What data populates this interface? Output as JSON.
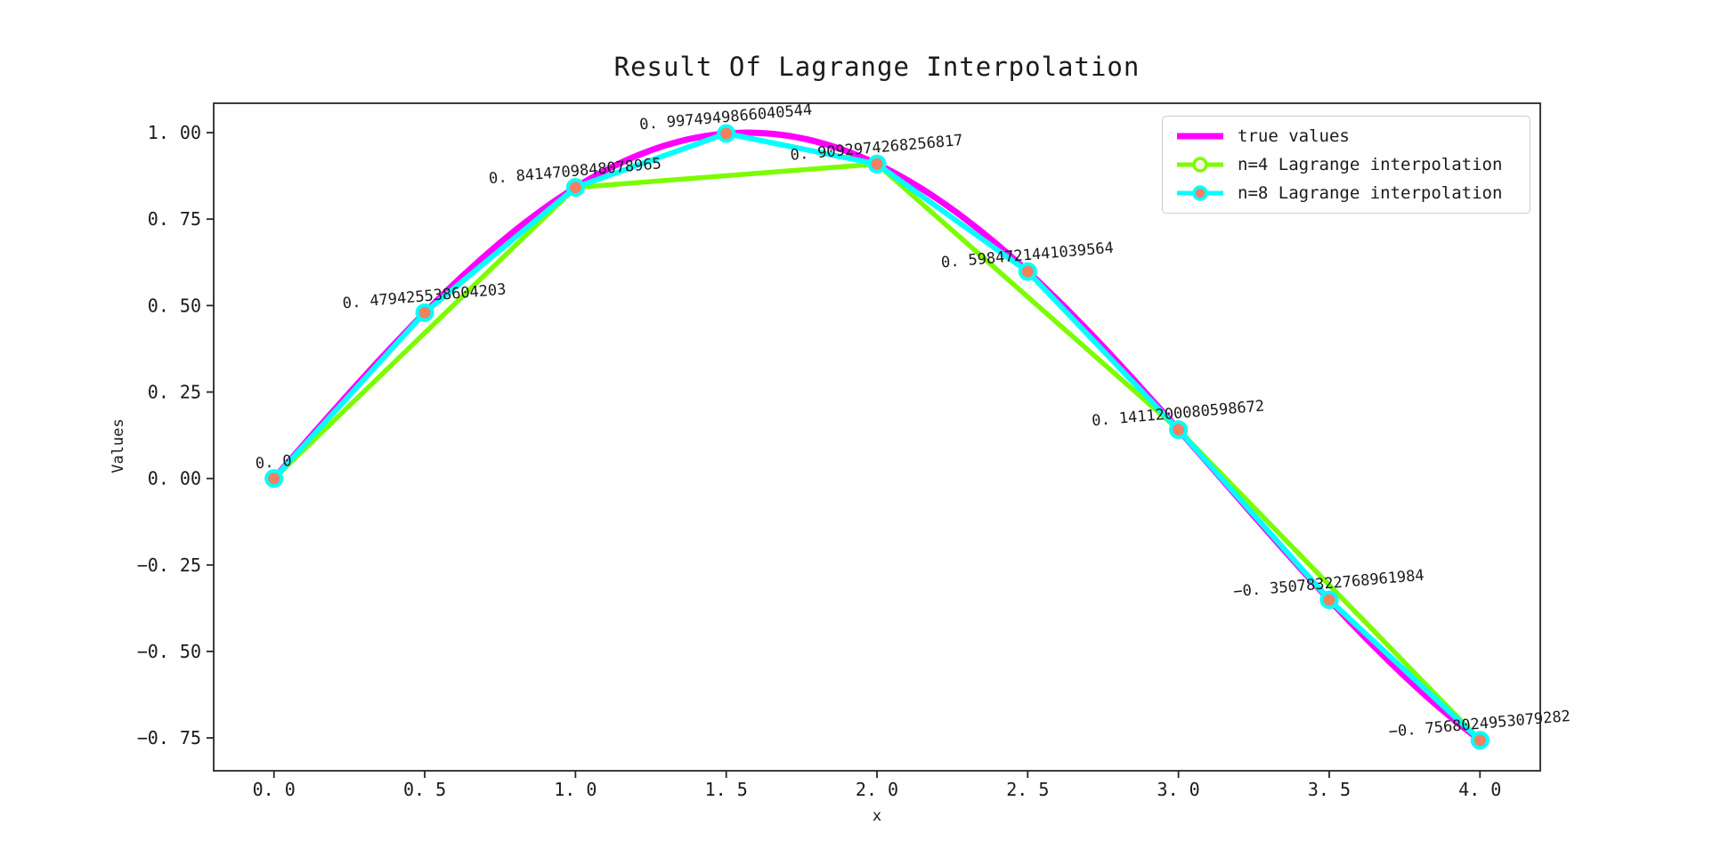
{
  "chart_data": {
    "type": "line",
    "title": "Result Of Lagrange Interpolation",
    "xlabel": "x",
    "ylabel": "Values",
    "xlim": [
      -0.2,
      4.2
    ],
    "ylim": [
      -0.845,
      1.085
    ],
    "grid": false,
    "legend_position": "upper right",
    "x_ticks": [
      0.0,
      0.5,
      1.0,
      1.5,
      2.0,
      2.5,
      3.0,
      3.5,
      4.0
    ],
    "x_tick_labels": [
      "0.0",
      "0.5",
      "1.0",
      "1.5",
      "2.0",
      "2.5",
      "3.0",
      "3.5",
      "4.0"
    ],
    "y_ticks": [
      1.0,
      0.75,
      0.5,
      0.25,
      0.0,
      -0.25,
      -0.5,
      -0.75
    ],
    "y_tick_labels": [
      "1.00",
      "0.75",
      "0.50",
      "0.25",
      "0.00",
      "-0.25",
      "-0.50",
      "-0.75"
    ],
    "axis_color": "#262626",
    "text_color": "#1a1a1a",
    "series": [
      {
        "name": "true values",
        "kind": "function",
        "fn": "sin",
        "x_range": [
          0,
          4
        ],
        "color": "#ff00ff",
        "linewidth": 7,
        "marker": "none"
      },
      {
        "name": "n=4 Lagrange interpolation",
        "kind": "line-marker",
        "color": "#7cfc00",
        "linewidth": 5.5,
        "marker_face": "#f6f2e2",
        "marker_edge": "#7cfc00",
        "x": [
          0.0,
          1.0,
          2.0,
          3.0,
          4.0
        ],
        "y": [
          0.0,
          0.8414709848078965,
          0.9092974268256817,
          0.1411200080598672,
          -0.7568024953079282
        ]
      },
      {
        "name": "n=8 Lagrange interpolation",
        "kind": "line-marker",
        "color": "#00ffff",
        "linewidth": 6,
        "marker_face": "#f08060",
        "marker_edge": "#00ffff",
        "x": [
          0.0,
          0.5,
          1.0,
          1.5,
          2.0,
          2.5,
          3.0,
          3.5,
          4.0
        ],
        "y": [
          0.0,
          0.479425538604203,
          0.8414709848078965,
          0.9974949866040544,
          0.9092974268256817,
          0.5984721441039564,
          0.1411200080598672,
          -0.35078322768961984,
          -0.7568024953079282
        ]
      }
    ],
    "annotations": [
      {
        "x": 0.0,
        "y": 0.0,
        "text": "0.0"
      },
      {
        "x": 0.5,
        "y": 0.479425538604203,
        "text": "0.479425538604203"
      },
      {
        "x": 1.0,
        "y": 0.8414709848078965,
        "text": "0.8414709848078965"
      },
      {
        "x": 1.5,
        "y": 0.9974949866040544,
        "text": "0.9974949866040544"
      },
      {
        "x": 2.0,
        "y": 0.9092974268256817,
        "text": "0.9092974268256817"
      },
      {
        "x": 2.5,
        "y": 0.5984721441039564,
        "text": "0.5984721441039564"
      },
      {
        "x": 3.0,
        "y": 0.1411200080598672,
        "text": "0.1411200080598672"
      },
      {
        "x": 3.5,
        "y": -0.35078322768961984,
        "text": "-0.35078322768961984"
      },
      {
        "x": 4.0,
        "y": -0.7568024953079282,
        "text": "-0.7568024953079282"
      }
    ]
  }
}
